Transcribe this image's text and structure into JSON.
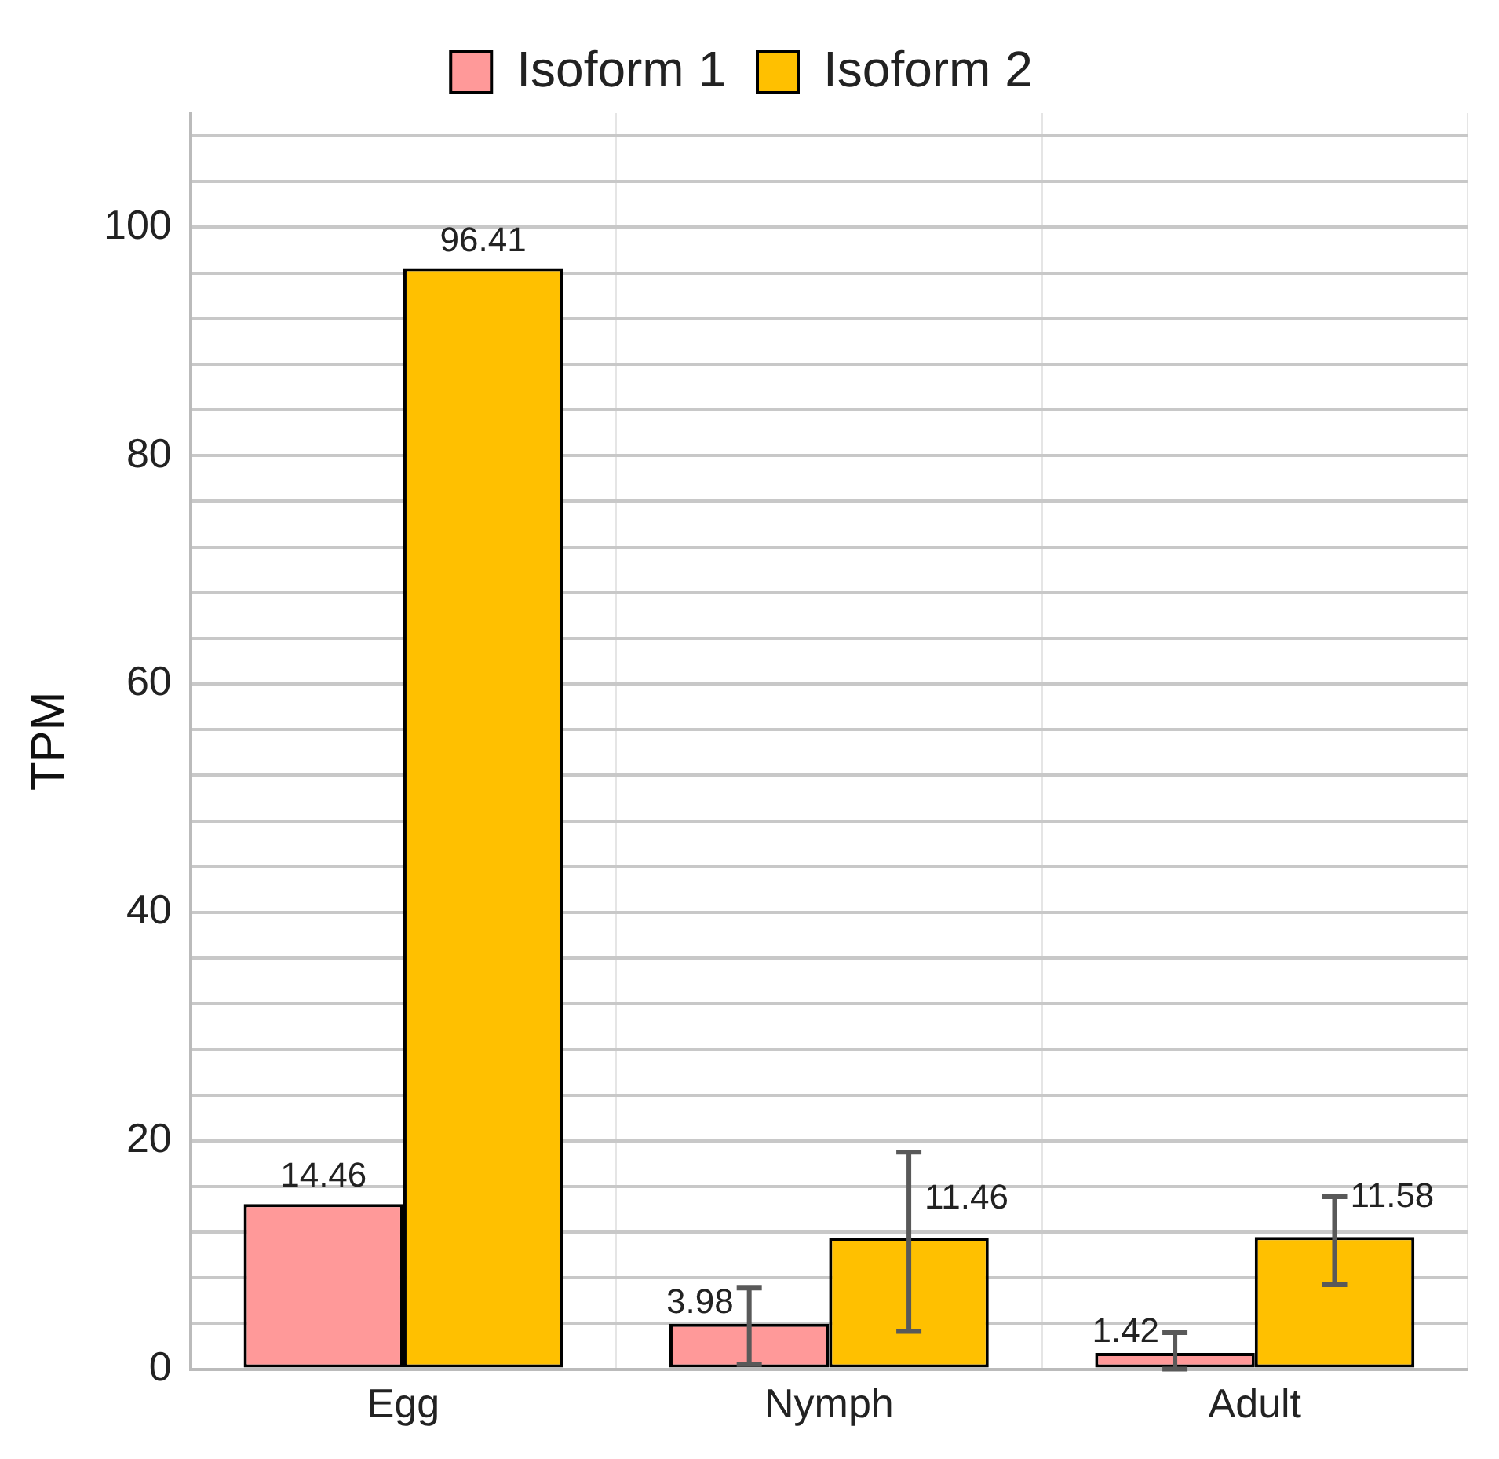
{
  "chart_data": {
    "type": "bar",
    "ylabel": "TPM",
    "categories": [
      "Egg",
      "Nymph",
      "Adult"
    ],
    "series": [
      {
        "name": "Isoform 1",
        "color": "#ff9999",
        "values": [
          14.46,
          3.98,
          1.42
        ],
        "errors": [
          null,
          [
            0.4,
            7.1
          ],
          [
            0,
            3.2
          ]
        ]
      },
      {
        "name": "Isoform 2",
        "color": "#ffc000",
        "values": [
          96.41,
          11.46,
          11.58
        ],
        "errors": [
          null,
          [
            3.3,
            19.0
          ],
          [
            7.4,
            15.1
          ]
        ]
      }
    ],
    "ylim": [
      0,
      110
    ],
    "yticks": [
      0,
      {
        "value": 4,
        "label": null
      },
      {
        "value": 8,
        "label": null
      },
      {
        "value": 12,
        "label": null
      },
      {
        "value": 16,
        "label": null
      },
      20,
      {
        "value": 24,
        "label": null
      },
      {
        "value": 28,
        "label": null
      },
      {
        "value": 32,
        "label": null
      },
      {
        "value": 36,
        "label": null
      },
      40,
      {
        "value": 44,
        "label": null
      },
      {
        "value": 48,
        "label": null
      },
      {
        "value": 52,
        "label": null
      },
      {
        "value": 56,
        "label": null
      },
      60,
      {
        "value": 64,
        "label": null
      },
      {
        "value": 68,
        "label": null
      },
      {
        "value": 72,
        "label": null
      },
      {
        "value": 76,
        "label": null
      },
      80,
      {
        "value": 84,
        "label": null
      },
      {
        "value": 88,
        "label": null
      },
      {
        "value": 92,
        "label": null
      },
      {
        "value": 96,
        "label": null
      },
      100,
      {
        "value": 104,
        "label": null
      },
      {
        "value": 108,
        "label": null
      }
    ],
    "grid": true,
    "legend": "top",
    "data_labels": true
  }
}
